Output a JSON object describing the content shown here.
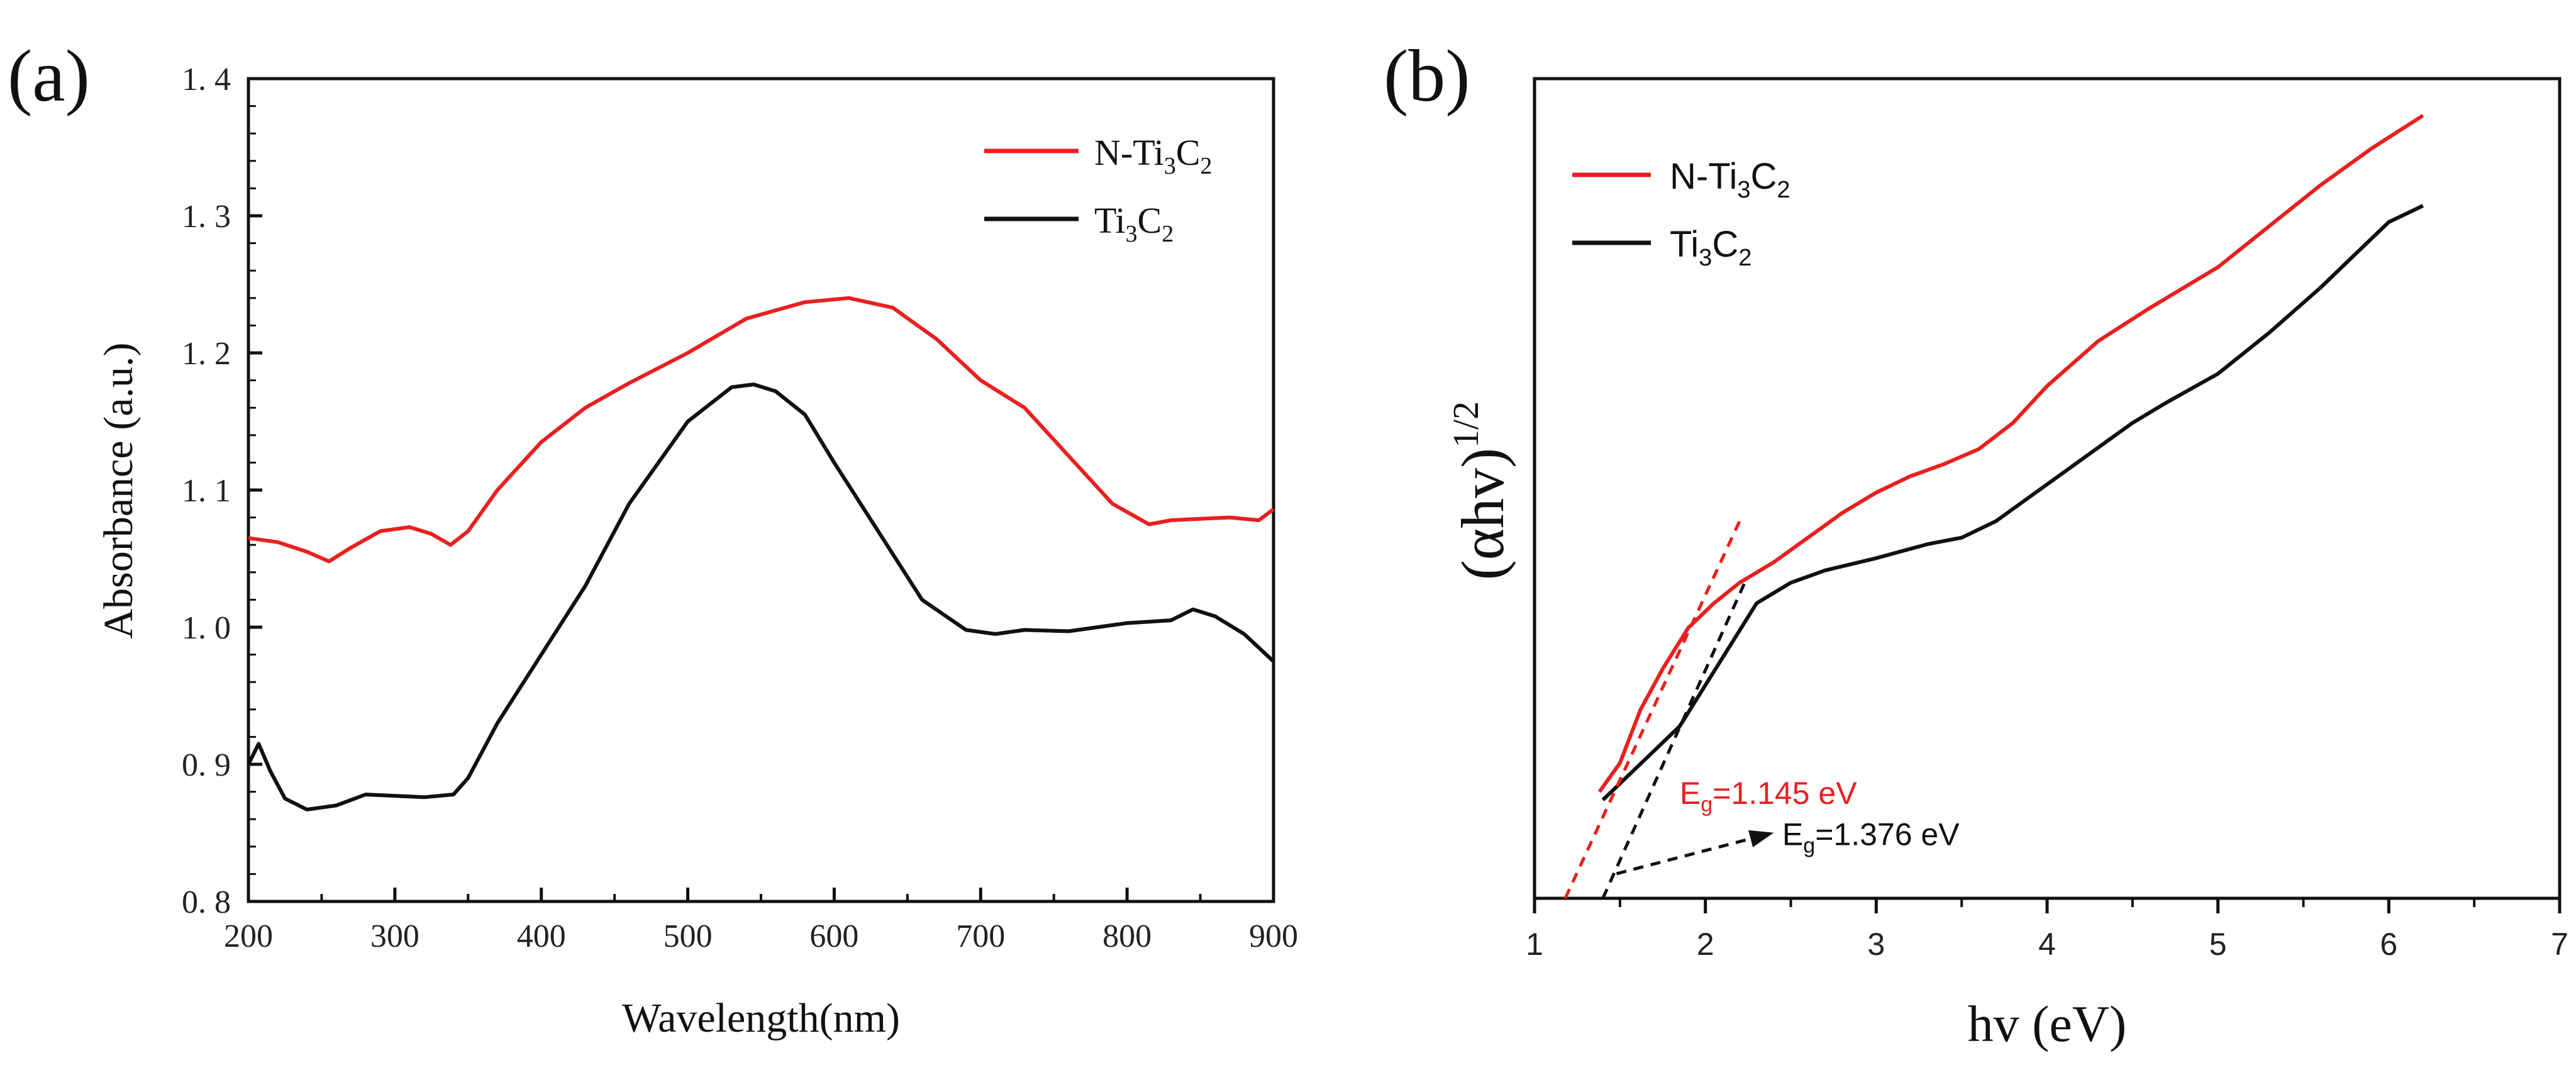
{
  "chart_data": [
    {
      "panel": "(a)",
      "type": "line",
      "xlabel": "Wavelength(nm)",
      "ylabel": "Absorbance (a.u.)",
      "xlim": [
        200,
        900
      ],
      "ylim": [
        0.8,
        1.4
      ],
      "xticks": [
        200,
        300,
        400,
        500,
        600,
        700,
        800,
        900
      ],
      "yticks": [
        "0. 8",
        "0. 9",
        "1. 0",
        "1. 1",
        "1. 2",
        "1. 3",
        "1. 4"
      ],
      "legend": {
        "position": "top-right"
      },
      "series": [
        {
          "name_main": "N-Ti",
          "name_sub1": "3",
          "name_mid": "C",
          "name_sub2": "2",
          "color": "#e8201f",
          "x": [
            200,
            220,
            240,
            255,
            270,
            290,
            310,
            325,
            338,
            350,
            370,
            400,
            430,
            460,
            500,
            540,
            580,
            610,
            640,
            670,
            700,
            730,
            760,
            790,
            815,
            830,
            850,
            870,
            890,
            900
          ],
          "y": [
            1.065,
            1.062,
            1.055,
            1.048,
            1.058,
            1.07,
            1.073,
            1.068,
            1.06,
            1.07,
            1.1,
            1.135,
            1.16,
            1.178,
            1.2,
            1.225,
            1.237,
            1.24,
            1.233,
            1.21,
            1.18,
            1.16,
            1.125,
            1.09,
            1.075,
            1.078,
            1.079,
            1.08,
            1.078,
            1.086
          ]
        },
        {
          "name_main": "Ti",
          "name_sub1": "3",
          "name_mid": "C",
          "name_sub2": "2",
          "color": "#111111",
          "x": [
            200,
            207,
            215,
            225,
            240,
            260,
            280,
            300,
            320,
            340,
            350,
            370,
            400,
            430,
            460,
            500,
            530,
            545,
            560,
            580,
            600,
            630,
            660,
            690,
            710,
            730,
            760,
            800,
            830,
            845,
            860,
            880,
            900
          ],
          "y": [
            0.9,
            0.915,
            0.895,
            0.875,
            0.867,
            0.87,
            0.878,
            0.877,
            0.876,
            0.878,
            0.89,
            0.93,
            0.98,
            1.03,
            1.09,
            1.15,
            1.175,
            1.177,
            1.172,
            1.155,
            1.12,
            1.07,
            1.02,
            0.998,
            0.995,
            0.998,
            0.997,
            1.003,
            1.005,
            1.013,
            1.008,
            0.995,
            0.975
          ]
        }
      ]
    },
    {
      "panel": "(b)",
      "type": "line",
      "xlabel": "hv (eV)",
      "ylabel_main": "(αhv)",
      "ylabel_sup": "1/2",
      "xlim": [
        1,
        7
      ],
      "ylim": [
        0,
        1
      ],
      "xticks": [
        1,
        2,
        3,
        4,
        5,
        6,
        7
      ],
      "legend": {
        "position": "top-left"
      },
      "series": [
        {
          "name_main": "N-Ti",
          "name_sub1": "3",
          "name_mid": "C",
          "name_sub2": "2",
          "color": "#e8201f",
          "x": [
            1.38,
            1.5,
            1.62,
            1.75,
            1.9,
            2.05,
            2.2,
            2.4,
            2.6,
            2.8,
            3.0,
            3.2,
            3.4,
            3.6,
            3.8,
            4.0,
            4.3,
            4.6,
            5.0,
            5.3,
            5.6,
            5.9,
            6.2
          ],
          "y": [
            0.13,
            0.165,
            0.23,
            0.28,
            0.33,
            0.36,
            0.385,
            0.41,
            0.44,
            0.47,
            0.495,
            0.515,
            0.53,
            0.548,
            0.58,
            0.625,
            0.68,
            0.72,
            0.77,
            0.82,
            0.87,
            0.915,
            0.955
          ]
        },
        {
          "name_main": "Ti",
          "name_sub1": "3",
          "name_mid": "C",
          "name_sub2": "2",
          "color": "#111111",
          "x": [
            1.4,
            1.5,
            1.7,
            1.85,
            2.0,
            2.15,
            2.3,
            2.5,
            2.7,
            3.0,
            3.3,
            3.5,
            3.7,
            3.9,
            4.1,
            4.3,
            4.5,
            4.7,
            5.0,
            5.3,
            5.6,
            5.8,
            6.0,
            6.2
          ],
          "y": [
            0.12,
            0.14,
            0.18,
            0.21,
            0.26,
            0.31,
            0.36,
            0.385,
            0.4,
            0.415,
            0.432,
            0.44,
            0.46,
            0.49,
            0.52,
            0.55,
            0.58,
            0.605,
            0.64,
            0.69,
            0.745,
            0.785,
            0.825,
            0.845
          ]
        }
      ],
      "tangents": [
        {
          "name": "N-Ti3C2 tangent",
          "color": "#e8201f",
          "x1": 1.18,
          "y1": 0.0,
          "x2": 2.2,
          "y2": 0.46
        },
        {
          "name": "Ti3C2 tangent",
          "color": "#111111",
          "x1": 1.4,
          "y1": 0.0,
          "x2": 2.23,
          "y2": 0.385
        }
      ],
      "arrow": {
        "x1": 1.48,
        "y1": 0.03,
        "x2": 2.4,
        "y2": 0.08
      },
      "annotations": [
        {
          "main": "E",
          "sub": "g",
          "rest": "=1.145 eV",
          "color": "#e8201f",
          "x": 1.85,
          "y": 0.115
        },
        {
          "main": "E",
          "sub": "g",
          "rest": "=1.376 eV",
          "color": "#111111",
          "x": 2.45,
          "y": 0.065
        }
      ]
    }
  ]
}
